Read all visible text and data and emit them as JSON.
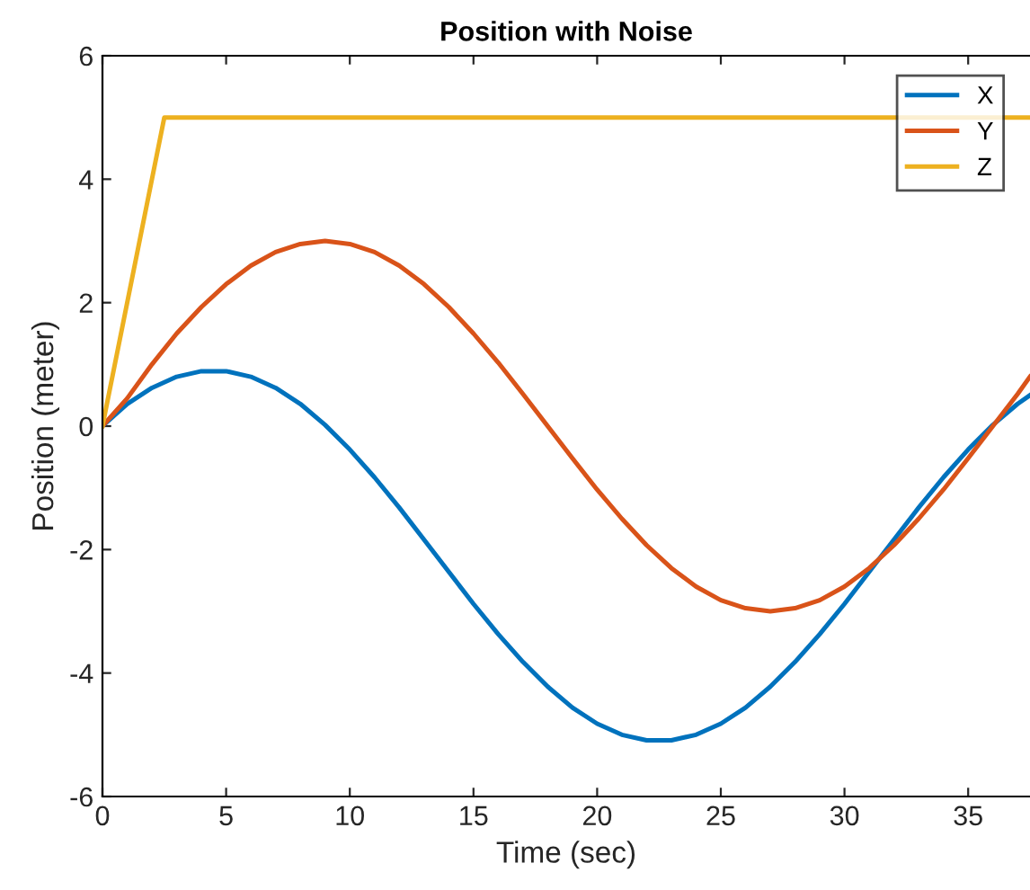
{
  "chart_data": {
    "type": "line",
    "title": "Position with Noise",
    "xlabel": "Time (sec)",
    "ylabel": "Position (meter)",
    "xlim": [
      0,
      37.5
    ],
    "xticks": [
      0,
      5,
      10,
      15,
      20,
      25,
      30,
      35
    ],
    "ylim": [
      -6,
      6
    ],
    "yticks": [
      -6,
      -4,
      -2,
      0,
      2,
      4,
      6
    ],
    "grid": false,
    "legend": "top right",
    "marker": "none",
    "line_style": "solid",
    "series": [
      {
        "name": "X",
        "color": "#0072bd",
        "x": [
          0,
          1,
          2,
          3,
          4,
          5,
          6,
          7,
          8,
          9,
          10,
          11,
          12,
          13,
          14,
          15,
          16,
          17,
          18,
          19,
          20,
          21,
          22,
          23,
          24,
          25,
          26,
          27,
          28,
          29,
          30,
          31,
          32,
          33,
          34,
          35,
          36,
          37,
          37.5
        ],
        "values": [
          0,
          0.36,
          0.62,
          0.8,
          0.89,
          0.89,
          0.8,
          0.62,
          0.36,
          0.02,
          -0.38,
          -0.83,
          -1.32,
          -1.84,
          -2.36,
          -2.88,
          -3.37,
          -3.82,
          -4.22,
          -4.56,
          -4.82,
          -5.0,
          -5.09,
          -5.09,
          -5.0,
          -4.82,
          -4.56,
          -4.22,
          -3.82,
          -3.37,
          -2.88,
          -2.36,
          -1.84,
          -1.32,
          -0.83,
          -0.38,
          0.02,
          0.36,
          0.5
        ]
      },
      {
        "name": "Y",
        "color": "#d95319",
        "x": [
          0,
          1,
          2,
          3,
          4,
          5,
          6,
          7,
          8,
          9,
          10,
          11,
          12,
          13,
          14,
          15,
          16,
          17,
          18,
          19,
          20,
          21,
          22,
          23,
          24,
          25,
          26,
          27,
          28,
          29,
          30,
          31,
          32,
          33,
          34,
          35,
          36,
          37,
          37.5
        ],
        "values": [
          0,
          0.45,
          1.0,
          1.5,
          1.93,
          2.3,
          2.6,
          2.82,
          2.95,
          3.0,
          2.95,
          2.82,
          2.6,
          2.3,
          1.93,
          1.5,
          1.03,
          0.52,
          0,
          -0.52,
          -1.03,
          -1.5,
          -1.93,
          -2.3,
          -2.6,
          -2.82,
          -2.95,
          -3.0,
          -2.95,
          -2.82,
          -2.6,
          -2.3,
          -1.93,
          -1.5,
          -1.03,
          -0.52,
          0,
          0.52,
          0.8
        ]
      },
      {
        "name": "Z",
        "color": "#edb120",
        "x": [
          0,
          2.5,
          37.5
        ],
        "values": [
          0,
          5,
          5
        ]
      }
    ]
  }
}
